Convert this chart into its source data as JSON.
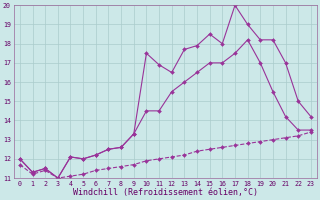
{
  "line1_x": [
    0,
    1,
    2,
    3,
    4,
    5,
    6,
    7,
    8,
    9,
    10,
    11,
    12,
    13,
    14,
    15,
    16,
    17,
    18,
    19,
    20,
    21,
    22,
    23
  ],
  "line1_y": [
    12.0,
    11.3,
    11.5,
    11.0,
    12.1,
    12.0,
    12.2,
    12.5,
    12.6,
    13.3,
    17.5,
    16.9,
    16.5,
    17.7,
    17.9,
    18.5,
    18.0,
    20.0,
    19.0,
    18.2,
    18.2,
    17.0,
    15.0,
    14.2
  ],
  "line2_x": [
    0,
    1,
    2,
    3,
    4,
    5,
    6,
    7,
    8,
    9,
    10,
    11,
    12,
    13,
    14,
    15,
    16,
    17,
    18,
    19,
    20,
    21,
    22,
    23
  ],
  "line2_y": [
    12.0,
    11.3,
    11.5,
    11.0,
    12.1,
    12.0,
    12.2,
    12.5,
    12.6,
    13.3,
    14.5,
    14.5,
    15.5,
    16.0,
    16.5,
    17.0,
    17.0,
    17.5,
    18.2,
    17.0,
    15.5,
    14.2,
    13.5,
    13.5
  ],
  "line3_x": [
    0,
    1,
    2,
    3,
    4,
    5,
    6,
    7,
    8,
    9,
    10,
    11,
    12,
    13,
    14,
    15,
    16,
    17,
    18,
    19,
    20,
    21,
    22,
    23
  ],
  "line3_y": [
    11.7,
    11.2,
    11.4,
    11.0,
    11.1,
    11.2,
    11.4,
    11.5,
    11.6,
    11.7,
    11.9,
    12.0,
    12.1,
    12.2,
    12.4,
    12.5,
    12.6,
    12.7,
    12.8,
    12.9,
    13.0,
    13.1,
    13.2,
    13.4
  ],
  "line_color": "#993399",
  "bg_color": "#cce8e8",
  "grid_color": "#aacccc",
  "xlabel": "Windchill (Refroidissement éolien,°C)",
  "xlim": [
    -0.5,
    23.5
  ],
  "ylim": [
    11,
    20
  ],
  "xticks": [
    0,
    1,
    2,
    3,
    4,
    5,
    6,
    7,
    8,
    9,
    10,
    11,
    12,
    13,
    14,
    15,
    16,
    17,
    18,
    19,
    20,
    21,
    22,
    23
  ],
  "yticks": [
    11,
    12,
    13,
    14,
    15,
    16,
    17,
    18,
    19,
    20
  ],
  "tick_fontsize": 4.8,
  "xlabel_fontsize": 6.0,
  "marker": "D",
  "markersize": 2.0,
  "linewidth": 0.8,
  "line3_style": "--"
}
